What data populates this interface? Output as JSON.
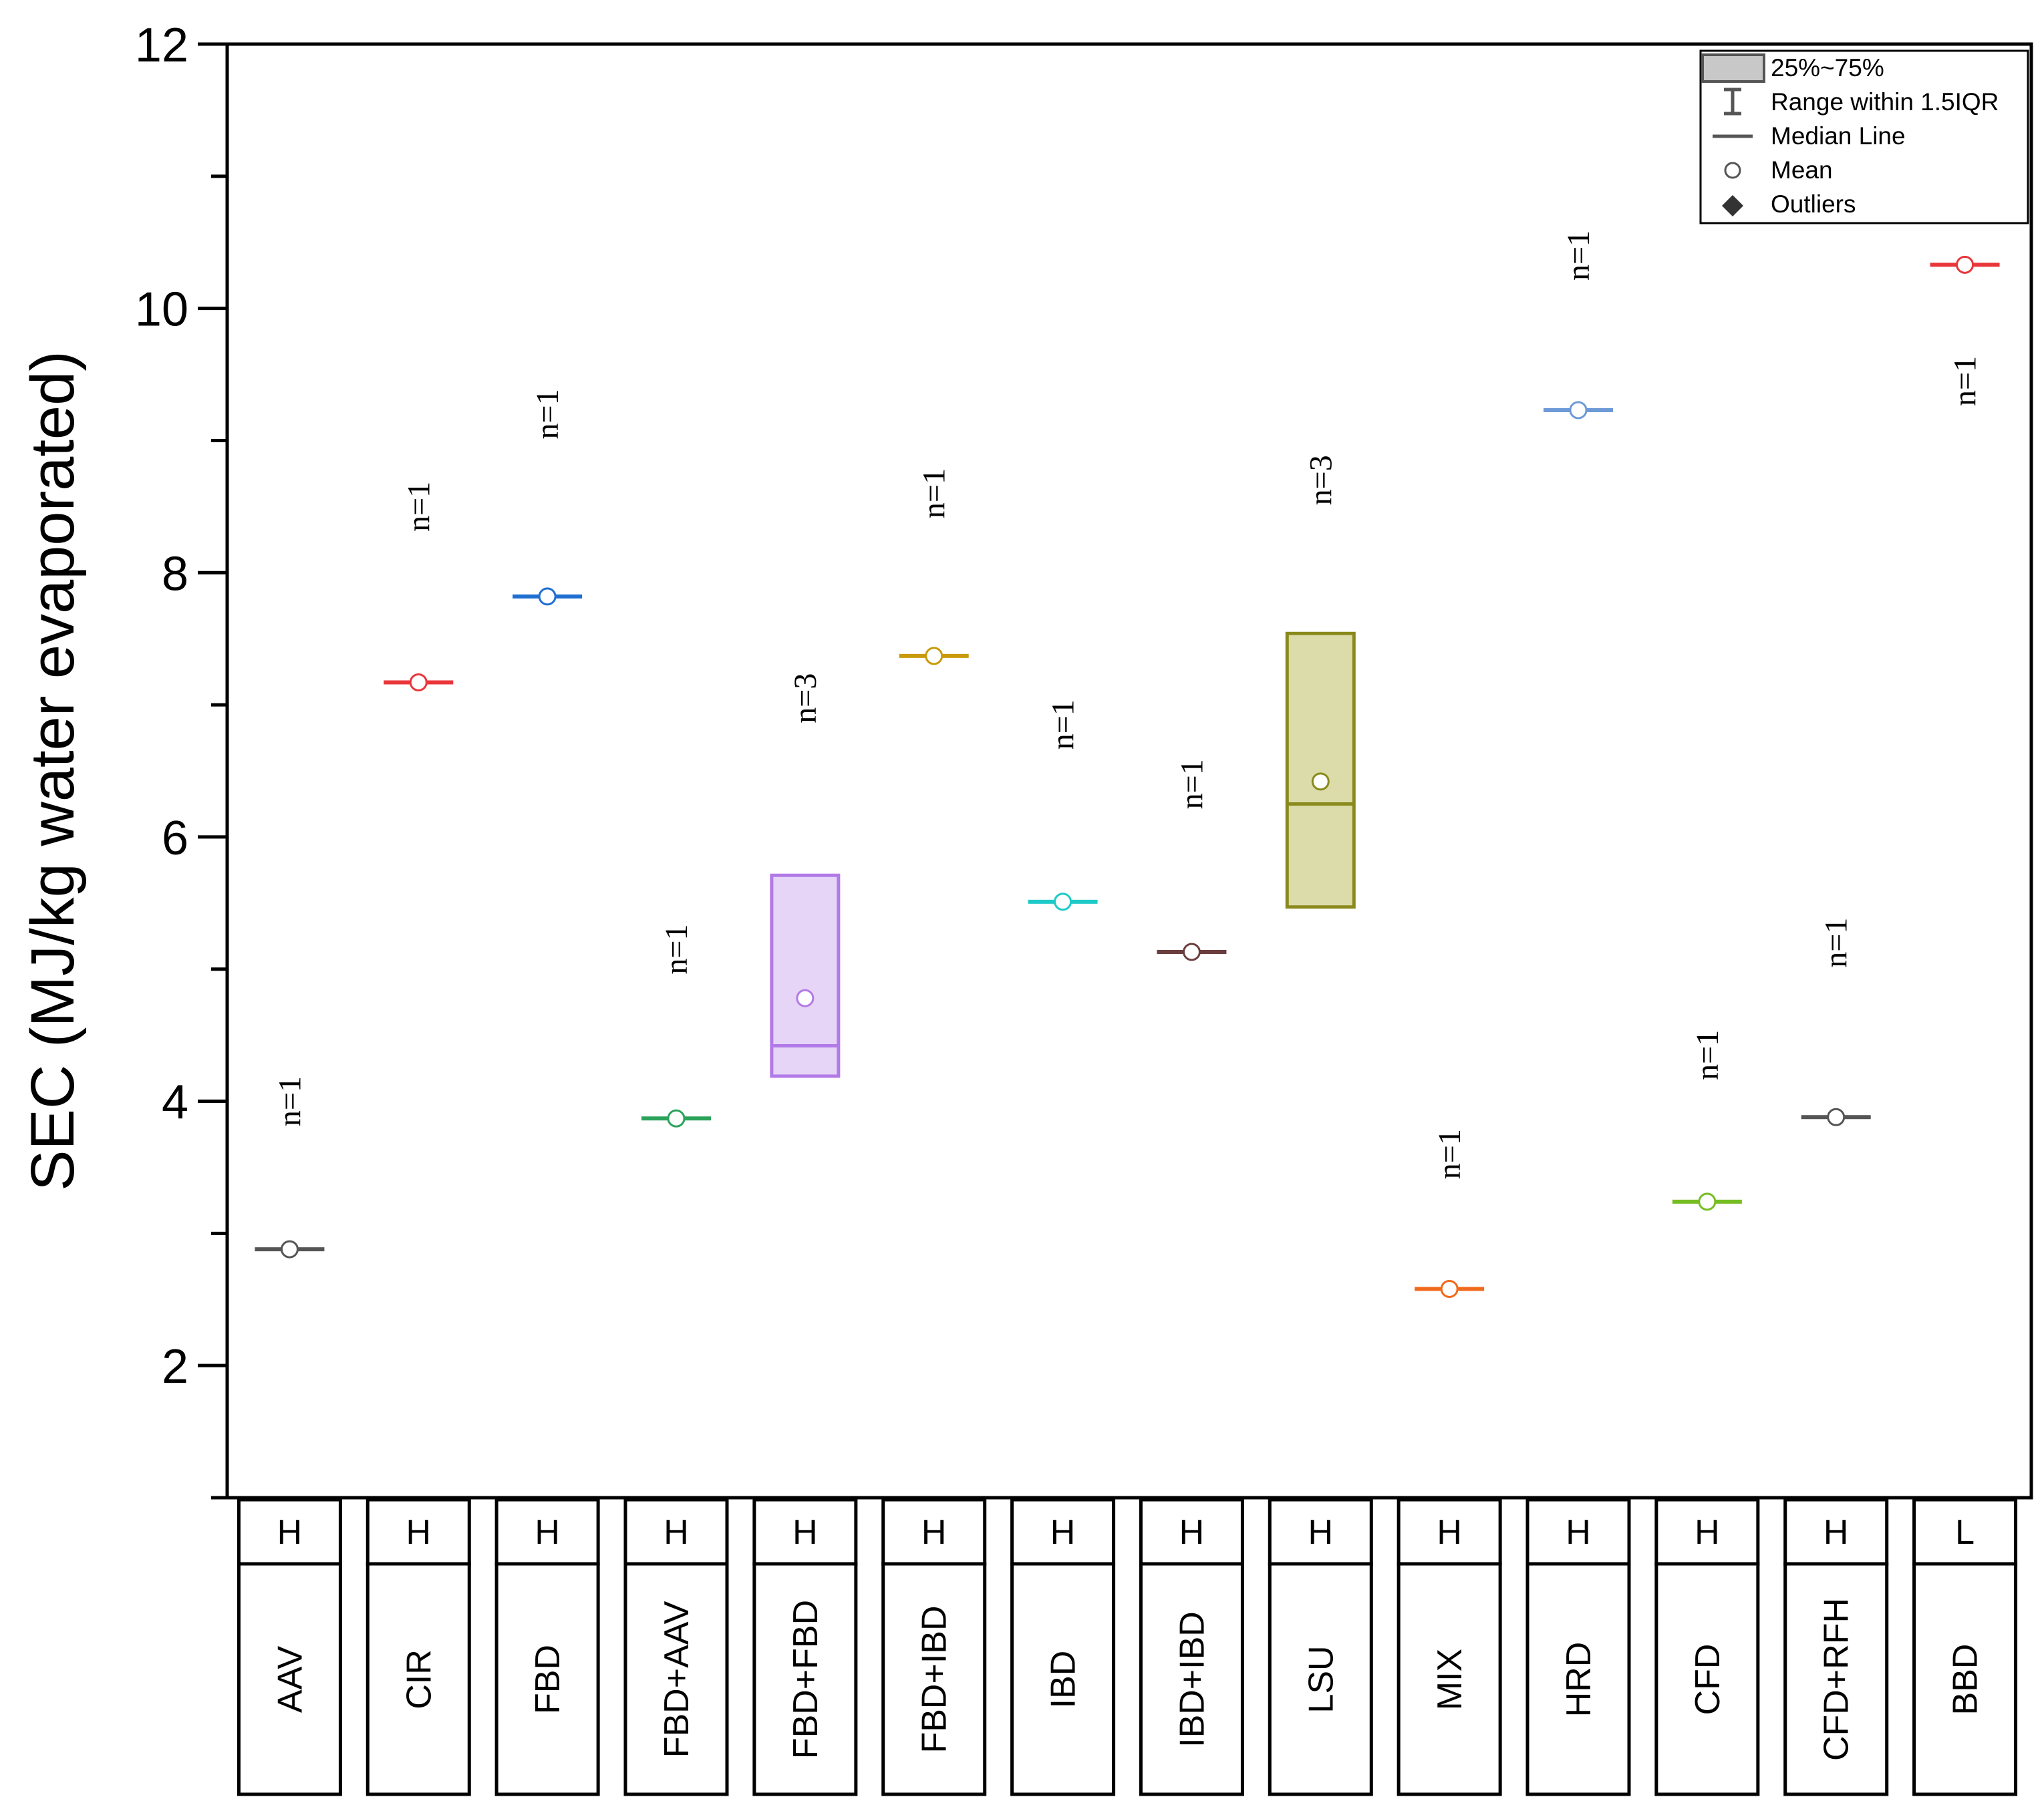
{
  "chart_data": {
    "type": "box",
    "ylabel": "SEC (MJ/kg water evaporated)",
    "xlabel": "",
    "ylim": [
      1,
      12
    ],
    "yticks": [
      2,
      4,
      6,
      8,
      10,
      12
    ],
    "categories": [
      "AAV",
      "CIR",
      "FBD",
      "FBD+AAV",
      "FBD+FBD",
      "FBD+IBD",
      "IBD",
      "IBD+IBD",
      "LSU",
      "MIX",
      "HRD",
      "CFD",
      "CFD+RFH",
      "BBD"
    ],
    "groups": [
      "H",
      "H",
      "H",
      "H",
      "H",
      "H",
      "H",
      "H",
      "H",
      "H",
      "H",
      "H",
      "H",
      "L"
    ],
    "boxes": [
      {
        "category": "AAV",
        "n_label": "n=1",
        "n_label_y": 4.0,
        "q1": 2.88,
        "q3": 2.88,
        "median": 2.88,
        "mean": 2.88,
        "color": "#555555",
        "fill": "none"
      },
      {
        "category": "CIR",
        "n_label": "n=1",
        "n_label_y": 8.5,
        "q1": 7.17,
        "q3": 7.17,
        "median": 7.17,
        "mean": 7.17,
        "color": "#e8363b",
        "fill": "none"
      },
      {
        "category": "FBD",
        "n_label": "n=1",
        "n_label_y": 9.2,
        "q1": 7.82,
        "q3": 7.82,
        "median": 7.82,
        "mean": 7.82,
        "color": "#1f6fd1",
        "fill": "none"
      },
      {
        "category": "FBD+AAV",
        "n_label": "n=1",
        "n_label_y": 5.15,
        "q1": 3.87,
        "q3": 3.87,
        "median": 3.87,
        "mean": 3.87,
        "color": "#2ba35a",
        "fill": "none"
      },
      {
        "category": "FBD+FBD",
        "n_label": "n=3",
        "n_label_y": 7.05,
        "q1": 4.19,
        "q3": 5.71,
        "median": 4.42,
        "mean": 4.78,
        "color": "#b27ae8",
        "fill": "#e6d5f6"
      },
      {
        "category": "FBD+IBD",
        "n_label": "n=1",
        "n_label_y": 8.6,
        "q1": 7.37,
        "q3": 7.37,
        "median": 7.37,
        "mean": 7.37,
        "color": "#c99a0c",
        "fill": "none"
      },
      {
        "category": "IBD",
        "n_label": "n=1",
        "n_label_y": 6.85,
        "q1": 5.51,
        "q3": 5.51,
        "median": 5.51,
        "mean": 5.51,
        "color": "#1ecac8",
        "fill": "none"
      },
      {
        "category": "IBD+IBD",
        "n_label": "n=1",
        "n_label_y": 6.4,
        "q1": 5.13,
        "q3": 5.13,
        "median": 5.13,
        "mean": 5.13,
        "color": "#6b3e3e",
        "fill": "none"
      },
      {
        "category": "LSU",
        "n_label": "n=3",
        "n_label_y": 8.7,
        "q1": 5.47,
        "q3": 7.54,
        "median": 6.25,
        "mean": 6.42,
        "color": "#8a8a1c",
        "fill": "#dcdcaa"
      },
      {
        "category": "MIX",
        "n_label": "n=1",
        "n_label_y": 3.6,
        "q1": 2.58,
        "q3": 2.58,
        "median": 2.58,
        "mean": 2.58,
        "color": "#f06a1c",
        "fill": "none"
      },
      {
        "category": "HRD",
        "n_label": "n=1",
        "n_label_y": 10.4,
        "q1": 9.23,
        "q3": 9.23,
        "median": 9.23,
        "mean": 9.23,
        "color": "#6d9ad6",
        "fill": "none"
      },
      {
        "category": "CFD",
        "n_label": "n=1",
        "n_label_y": 4.35,
        "q1": 3.24,
        "q3": 3.24,
        "median": 3.24,
        "mean": 3.24,
        "color": "#76bd22",
        "fill": "none"
      },
      {
        "category": "CFD+RFH",
        "n_label": "n=1",
        "n_label_y": 5.2,
        "q1": 3.88,
        "q3": 3.88,
        "median": 3.88,
        "mean": 3.88,
        "color": "#555555",
        "fill": "none"
      },
      {
        "category": "BBD",
        "n_label": "n=1",
        "n_label_y": 9.45,
        "q1": 10.33,
        "q3": 10.33,
        "median": 10.33,
        "mean": 10.33,
        "color": "#e8363b",
        "fill": "none"
      }
    ],
    "legend": {
      "placement": "top-right",
      "items": [
        "25%~75%",
        "Range within 1.5IQR",
        "Median Line",
        "Mean",
        "Outliers"
      ]
    }
  }
}
